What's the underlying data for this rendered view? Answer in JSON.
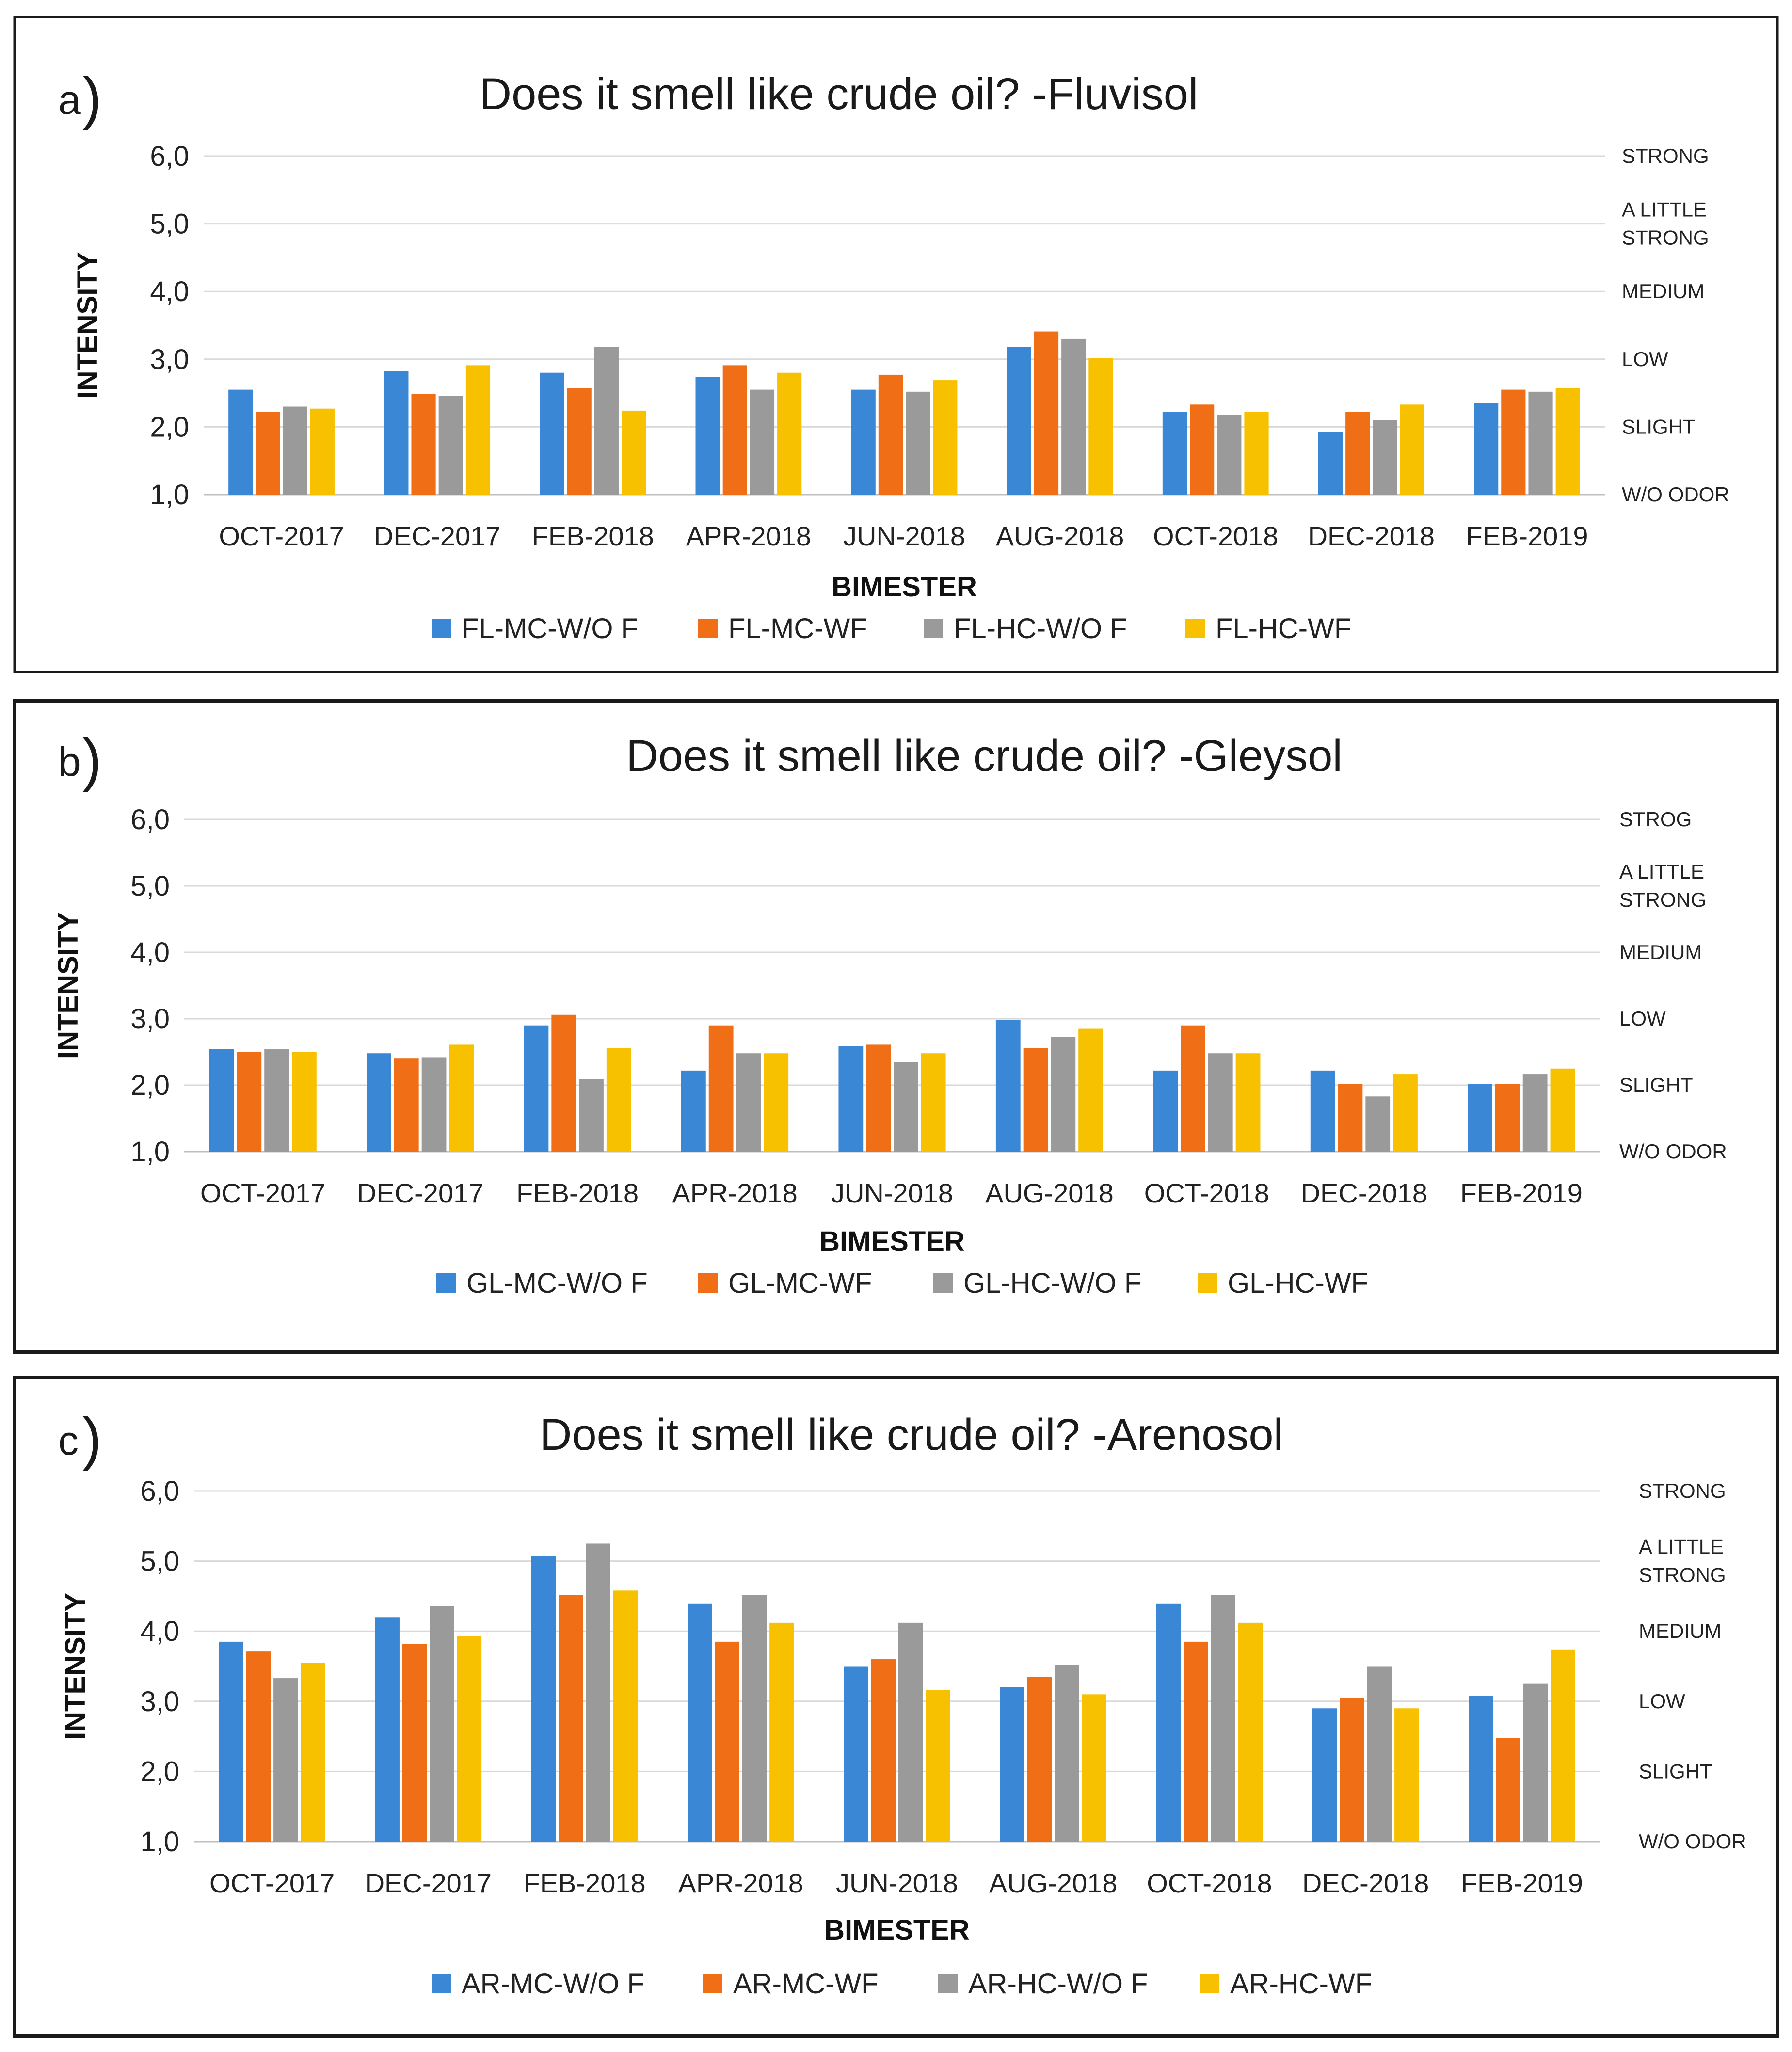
{
  "chart_data": [
    {
      "type": "bar",
      "panel_letter": "a",
      "title": "Does it smell like crude oil? -Fluvisol",
      "xlabel": "BIMESTER",
      "ylabel": "INTENSITY",
      "ylim": [
        1.0,
        6.0
      ],
      "yticks": [
        "1,0",
        "2,0",
        "3,0",
        "4,0",
        "5,0",
        "6,0"
      ],
      "qualitative_labels": [
        {
          "value": 1.0,
          "lines": [
            "W/O ODOR"
          ]
        },
        {
          "value": 2.0,
          "lines": [
            "SLIGHT"
          ]
        },
        {
          "value": 3.0,
          "lines": [
            "LOW"
          ]
        },
        {
          "value": 4.0,
          "lines": [
            "MEDIUM"
          ]
        },
        {
          "value": 5.0,
          "lines": [
            "A LITTLE",
            "STRONG"
          ]
        },
        {
          "value": 6.0,
          "lines": [
            "STRONG"
          ]
        }
      ],
      "grid": true,
      "legend_position": "bottom",
      "categories": [
        "OCT-2017",
        "DEC-2017",
        "FEB-2018",
        "APR-2018",
        "JUN-2018",
        "AUG-2018",
        "OCT-2018",
        "DEC-2018",
        "FEB-2019"
      ],
      "series": [
        {
          "name": "FL-MC-W/O F",
          "color": "#3a87d6",
          "values": [
            2.55,
            2.82,
            2.8,
            2.74,
            2.55,
            3.18,
            2.22,
            1.93,
            2.35
          ]
        },
        {
          "name": "FL-MC-WF",
          "color": "#ef6e16",
          "values": [
            2.22,
            2.49,
            2.57,
            2.91,
            2.77,
            3.41,
            2.33,
            2.22,
            2.55
          ]
        },
        {
          "name": "FL-HC-W/O F",
          "color": "#9a9a9a",
          "values": [
            2.3,
            2.46,
            3.18,
            2.55,
            2.52,
            3.3,
            2.18,
            2.1,
            2.52
          ]
        },
        {
          "name": "FL-HC-WF",
          "color": "#f7c100",
          "values": [
            2.27,
            2.91,
            2.24,
            2.8,
            2.69,
            3.02,
            2.22,
            2.33,
            2.57
          ]
        }
      ]
    },
    {
      "type": "bar",
      "panel_letter": "b",
      "title": "Does it smell like crude oil? -Gleysol",
      "xlabel": "BIMESTER",
      "ylabel": "INTENSITY",
      "ylim": [
        1.0,
        6.0
      ],
      "yticks": [
        "1,0",
        "2,0",
        "3,0",
        "4,0",
        "5,0",
        "6,0"
      ],
      "qualitative_labels": [
        {
          "value": 1.0,
          "lines": [
            "W/O ODOR"
          ]
        },
        {
          "value": 2.0,
          "lines": [
            "SLIGHT"
          ]
        },
        {
          "value": 3.0,
          "lines": [
            "LOW"
          ]
        },
        {
          "value": 4.0,
          "lines": [
            "MEDIUM"
          ]
        },
        {
          "value": 5.0,
          "lines": [
            "A LITTLE",
            "STRONG"
          ]
        },
        {
          "value": 6.0,
          "lines": [
            "STROG"
          ]
        }
      ],
      "grid": true,
      "legend_position": "bottom",
      "categories": [
        "OCT-2017",
        "DEC-2017",
        "FEB-2018",
        "APR-2018",
        "JUN-2018",
        "AUG-2018",
        "OCT-2018",
        "DEC-2018",
        "FEB-2019"
      ],
      "series": [
        {
          "name": "GL-MC-W/O F",
          "color": "#3a87d6",
          "values": [
            2.54,
            2.48,
            2.9,
            2.22,
            2.59,
            2.98,
            2.22,
            2.22,
            2.02
          ]
        },
        {
          "name": "GL-MC-WF",
          "color": "#ef6e16",
          "values": [
            2.5,
            2.4,
            3.06,
            2.9,
            2.61,
            2.56,
            2.9,
            2.02,
            2.02
          ]
        },
        {
          "name": "GL-HC-W/O F",
          "color": "#9a9a9a",
          "values": [
            2.54,
            2.42,
            2.09,
            2.48,
            2.35,
            2.73,
            2.48,
            1.83,
            2.16
          ]
        },
        {
          "name": "GL-HC-WF",
          "color": "#f7c100",
          "values": [
            2.5,
            2.61,
            2.56,
            2.48,
            2.48,
            2.85,
            2.48,
            2.16,
            2.25
          ]
        }
      ]
    },
    {
      "type": "bar",
      "panel_letter": "c",
      "title": "Does it smell like crude oil? -Arenosol",
      "xlabel": "BIMESTER",
      "ylabel": "INTENSITY",
      "ylim": [
        1.0,
        6.0
      ],
      "yticks": [
        "1,0",
        "2,0",
        "3,0",
        "4,0",
        "5,0",
        "6,0"
      ],
      "qualitative_labels": [
        {
          "value": 1.0,
          "lines": [
            "W/O ODOR"
          ]
        },
        {
          "value": 2.0,
          "lines": [
            "SLIGHT"
          ]
        },
        {
          "value": 3.0,
          "lines": [
            "LOW"
          ]
        },
        {
          "value": 4.0,
          "lines": [
            "MEDIUM"
          ]
        },
        {
          "value": 5.0,
          "lines": [
            "A LITTLE",
            "STRONG"
          ]
        },
        {
          "value": 6.0,
          "lines": [
            "STRONG"
          ]
        }
      ],
      "grid": true,
      "legend_position": "bottom",
      "categories": [
        "OCT-2017",
        "DEC-2017",
        "FEB-2018",
        "APR-2018",
        "JUN-2018",
        "AUG-2018",
        "OCT-2018",
        "DEC-2018",
        "FEB-2019"
      ],
      "series": [
        {
          "name": "AR-MC-W/O F",
          "color": "#3a87d6",
          "values": [
            3.85,
            4.2,
            5.07,
            4.39,
            3.5,
            3.2,
            4.39,
            2.9,
            3.08
          ]
        },
        {
          "name": "AR-MC-WF",
          "color": "#ef6e16",
          "values": [
            3.71,
            3.82,
            4.52,
            3.85,
            3.6,
            3.35,
            3.85,
            3.05,
            2.48
          ]
        },
        {
          "name": "AR-HC-W/O F",
          "color": "#9a9a9a",
          "values": [
            3.33,
            4.36,
            5.25,
            4.52,
            4.12,
            3.52,
            4.52,
            3.5,
            3.25
          ]
        },
        {
          "name": "AR-HC-WF",
          "color": "#f7c100",
          "values": [
            3.55,
            3.93,
            4.58,
            4.12,
            3.16,
            3.1,
            4.12,
            2.9,
            3.74
          ]
        }
      ]
    }
  ]
}
